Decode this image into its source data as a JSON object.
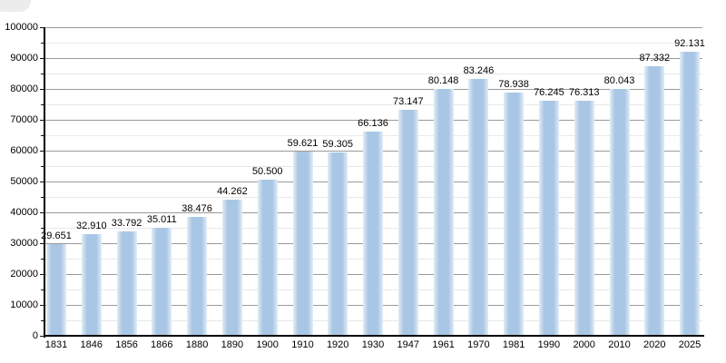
{
  "chart_data": {
    "type": "bar",
    "title": "",
    "xlabel": "",
    "ylabel": "",
    "legend": "none",
    "grid": "on",
    "ylim": [
      0,
      100000
    ],
    "categories": [
      "1831",
      "1846",
      "1856",
      "1866",
      "1880",
      "1890",
      "1900",
      "1910",
      "1920",
      "1930",
      "1947",
      "1961",
      "1970",
      "1981",
      "1990",
      "2000",
      "2010",
      "2020",
      "2025"
    ],
    "values": [
      29651,
      32910,
      33792,
      35011,
      38476,
      44262,
      50500,
      59621,
      59305,
      66136,
      73147,
      80148,
      83246,
      78938,
      76245,
      76313,
      80043,
      87332,
      92131
    ],
    "value_labels": [
      "29.651",
      "32.910",
      "33.792",
      "35.011",
      "38.476",
      "44.262",
      "50.500",
      "59.621",
      "59.305",
      "66.136",
      "73.147",
      "80.148",
      "83.246",
      "78.938",
      "76.245",
      "76.313",
      "80.043",
      "87.332",
      "92.131"
    ],
    "y_axis": {
      "tick_values": [
        100000,
        90000,
        80000,
        70000,
        60000,
        50000,
        40000,
        30000,
        20000,
        10000,
        0
      ],
      "tick_labels": [
        "100000",
        "90000",
        "80000",
        "70000",
        "60000",
        "50000",
        "40000",
        "30000",
        "20000",
        "10000",
        "0"
      ],
      "minor_interval": 5000
    },
    "colors": {
      "bar_fill": "#a9c7e4",
      "bar_edge_fade": "#e2edf7",
      "axis": "#000000",
      "tick": "#111111",
      "major_grid": "#9a9a9a",
      "minor_grid": "#e8e8e8",
      "label_text": "#000000",
      "background": "#ffffff"
    }
  }
}
